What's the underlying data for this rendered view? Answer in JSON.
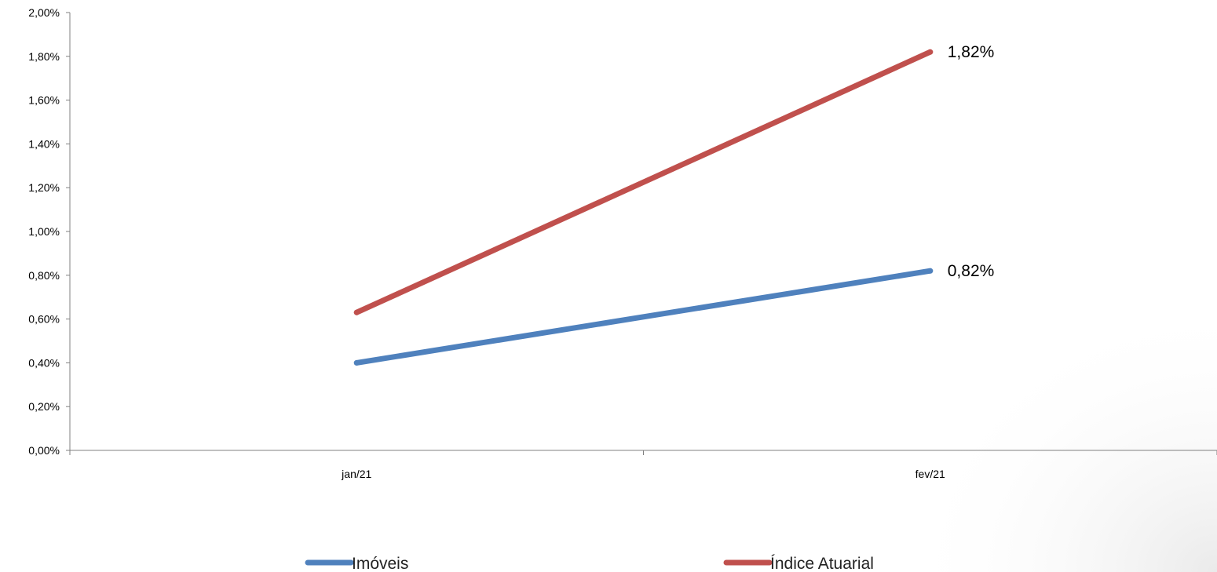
{
  "chart_data": {
    "type": "line",
    "categories": [
      "jan/21",
      "fev/21"
    ],
    "series": [
      {
        "name": "Imóveis",
        "values": [
          0.4,
          0.82
        ],
        "color": "#4F81BD",
        "data_labels": [
          "",
          "0,82%"
        ]
      },
      {
        "name": "Índice Atuarial",
        "values": [
          0.63,
          1.82
        ],
        "color": "#C0504D",
        "data_labels": [
          "",
          "1,82%"
        ]
      }
    ],
    "ylim": [
      0,
      2.0
    ],
    "y_ticks": [
      0,
      0.2,
      0.4,
      0.6,
      0.8,
      1.0,
      1.2,
      1.4,
      1.6,
      1.8,
      2.0
    ],
    "y_tick_labels": [
      "0,00%",
      "0,20%",
      "0,40%",
      "0,60%",
      "0,80%",
      "1,00%",
      "1,20%",
      "1,40%",
      "1,60%",
      "1,80%",
      "2,00%"
    ],
    "grid": false,
    "legend_position": "bottom"
  }
}
